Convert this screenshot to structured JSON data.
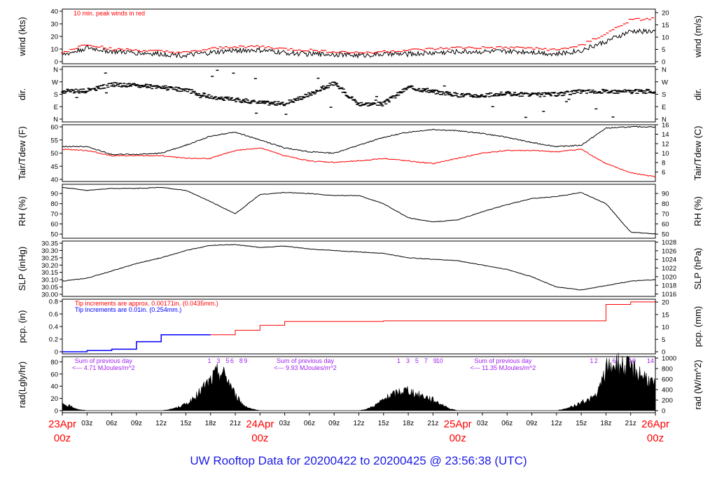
{
  "footer": {
    "title": "UW Rooftop Data for 20200422  to  20200425 @ 23:56:38  (UTC)"
  },
  "colors": {
    "black": "#000000",
    "red": "#ff0000",
    "blue": "#0000ff",
    "purple": "#a020f0",
    "footer_blue": "#1a1ae6"
  },
  "chart_data": [
    {
      "id": "wind",
      "type": "line",
      "ylabel": "wind (kts)",
      "ylabel_right": "wind (m/s)",
      "ylim": [
        0,
        40
      ],
      "yticks": [
        0,
        10,
        20,
        30,
        40
      ],
      "right_ticks": [
        0,
        5,
        10,
        15,
        20
      ],
      "right_factor": 0.5144,
      "annotation": "10 min. peak winds in red",
      "x": [
        0,
        3,
        6,
        9,
        12,
        15,
        18,
        21,
        24,
        27,
        30,
        33,
        36,
        39,
        42,
        45,
        48,
        51,
        54,
        57,
        60,
        63,
        66,
        69,
        72
      ],
      "series": [
        {
          "name": "wind",
          "color": "#000000",
          "values": [
            5,
            11,
            8,
            7,
            6,
            5,
            7,
            9,
            9,
            7,
            6,
            6,
            5,
            6,
            6,
            7,
            8,
            8,
            8,
            8,
            6,
            9,
            16,
            24,
            24
          ]
        },
        {
          "name": "10 min. peak winds",
          "color": "#ff0000",
          "values": [
            7,
            14,
            10,
            9,
            8,
            7,
            10,
            12,
            12,
            10,
            9,
            8,
            7,
            8,
            9,
            10,
            11,
            11,
            11,
            11,
            9,
            13,
            22,
            33,
            34
          ]
        }
      ]
    },
    {
      "id": "dir",
      "type": "scatter",
      "ylabel": "dir.",
      "ylabel_right": "dir.",
      "ytick_labels": [
        "N",
        "E",
        "S",
        "W",
        "N"
      ],
      "ytick_values": [
        0,
        90,
        180,
        270,
        360
      ],
      "x": [
        0,
        3,
        6,
        9,
        12,
        15,
        18,
        21,
        24,
        27,
        30,
        33,
        36,
        39,
        42,
        45,
        48,
        51,
        54,
        57,
        60,
        63,
        66,
        69,
        72
      ],
      "values": [
        200,
        205,
        250,
        245,
        230,
        210,
        160,
        140,
        120,
        110,
        180,
        260,
        110,
        110,
        230,
        200,
        175,
        170,
        185,
        175,
        180,
        200,
        200,
        200,
        200
      ]
    },
    {
      "id": "temp",
      "type": "line",
      "ylabel": "Tair/Tdew (F)",
      "ylabel_right": "Tair/Tdew (C)",
      "ylim": [
        40,
        60
      ],
      "yticks": [
        40,
        45,
        50,
        55,
        60
      ],
      "right_ticks": [
        6,
        8,
        10,
        12,
        14,
        16
      ],
      "x": [
        0,
        3,
        6,
        9,
        12,
        15,
        18,
        21,
        24,
        27,
        30,
        33,
        36,
        39,
        42,
        45,
        48,
        51,
        54,
        57,
        60,
        63,
        66,
        69,
        72
      ],
      "series": [
        {
          "name": "Tair",
          "color": "#000000",
          "values": [
            52.5,
            52.5,
            49.5,
            49.5,
            50.0,
            53.0,
            56.5,
            58.0,
            55.0,
            52.0,
            50.5,
            50.0,
            53.0,
            56.0,
            58.0,
            59.0,
            58.5,
            57.5,
            56.0,
            54.0,
            52.5,
            53.0,
            59.5,
            60.0,
            60.0
          ]
        },
        {
          "name": "Tdew",
          "color": "#ff0000",
          "values": [
            51.5,
            51.0,
            49.0,
            49.0,
            49.0,
            48.0,
            48.0,
            51.0,
            52.0,
            49.0,
            47.0,
            46.5,
            47.0,
            48.0,
            47.0,
            46.0,
            48.0,
            50.0,
            51.0,
            51.0,
            50.5,
            51.5,
            46.0,
            42.5,
            41.0
          ]
        }
      ]
    },
    {
      "id": "rh",
      "type": "line",
      "ylabel": "RH (%)",
      "ylabel_right": "RH (%)",
      "ylim": [
        48,
        97
      ],
      "yticks": [
        50,
        60,
        70,
        80,
        90
      ],
      "x": [
        0,
        3,
        6,
        9,
        12,
        15,
        18,
        21,
        24,
        27,
        30,
        33,
        36,
        39,
        42,
        45,
        48,
        51,
        54,
        57,
        60,
        63,
        66,
        69,
        72
      ],
      "series": [
        {
          "name": "RH",
          "color": "#000000",
          "values": [
            96,
            93,
            95,
            95,
            96,
            93,
            82,
            70,
            89,
            91,
            90,
            88,
            88,
            80,
            66,
            62,
            64,
            72,
            79,
            85,
            87,
            91,
            80,
            52,
            50
          ]
        }
      ]
    },
    {
      "id": "slp",
      "type": "line",
      "ylabel": "SLP (inHg)",
      "ylabel_right": "SLP (hPa)",
      "ylim": [
        30.0,
        30.35
      ],
      "yticks": [
        30.0,
        30.05,
        30.1,
        30.15,
        30.2,
        30.25,
        30.3,
        30.35
      ],
      "right_ticks": [
        1016,
        1018,
        1020,
        1022,
        1024,
        1026,
        1028
      ],
      "x": [
        0,
        3,
        6,
        9,
        12,
        15,
        18,
        21,
        24,
        27,
        30,
        33,
        36,
        39,
        42,
        45,
        48,
        51,
        54,
        57,
        60,
        63,
        66,
        69,
        72
      ],
      "series": [
        {
          "name": "SLP",
          "color": "#000000",
          "values": [
            30.09,
            30.11,
            30.16,
            30.21,
            30.25,
            30.3,
            30.335,
            30.34,
            30.32,
            30.33,
            30.31,
            30.3,
            30.29,
            30.28,
            30.25,
            30.24,
            30.23,
            30.2,
            30.17,
            30.12,
            30.05,
            30.03,
            30.06,
            30.09,
            30.1
          ]
        }
      ]
    },
    {
      "id": "pcp",
      "type": "line",
      "ylabel": "pcp. (in)",
      "ylabel_right": "pcp. (mm)",
      "ylim": [
        0,
        0.8
      ],
      "yticks": [
        0,
        0.2,
        0.4,
        0.6,
        0.8
      ],
      "right_ticks": [
        0,
        5,
        10,
        15,
        20
      ],
      "annotations": [
        "Tip increments are approx. 0.00171in. (0.0435mm.)",
        "Tip increments are 0.01in. (0.254mm.)"
      ],
      "x": [
        0,
        3,
        6,
        9,
        12,
        15,
        18,
        21,
        24,
        27,
        30,
        33,
        36,
        39,
        42,
        45,
        48,
        51,
        54,
        57,
        60,
        63,
        66,
        69,
        72
      ],
      "series": [
        {
          "name": "pcp",
          "color": "#ff0000",
          "values": [
            0,
            0.02,
            0.04,
            0.16,
            0.27,
            0.27,
            0.27,
            0.34,
            0.42,
            0.48,
            0.48,
            0.48,
            0.48,
            0.49,
            0.49,
            0.49,
            0.49,
            0.49,
            0.49,
            0.49,
            0.49,
            0.49,
            0.75,
            0.79,
            0.79
          ]
        }
      ]
    },
    {
      "id": "rad",
      "type": "area",
      "ylabel": "rad(Lgly/hr)",
      "ylabel_right": "rad (W/m^2)",
      "ylim": [
        0,
        85
      ],
      "yticks": [
        0,
        20,
        40,
        60,
        80
      ],
      "right_ticks": [
        0,
        200,
        400,
        600,
        800,
        1000
      ],
      "annotations": [
        {
          "line1": "Sum of previous day",
          "line2": "<--- 4.71 MJoules/m^2"
        },
        {
          "line1": "Sum of previous day",
          "line2": "<--- 9.93 MJoules/m^2"
        },
        {
          "line1": "Sum of previous day",
          "line2": "<--- 11.35 MJoules/m^2"
        }
      ],
      "hour_markers": [
        [
          "1",
          "3",
          "5",
          "6",
          "8",
          "9"
        ],
        [
          "1",
          "3",
          "5",
          "7",
          "9",
          "10"
        ],
        [
          "1",
          "2",
          "6",
          "10",
          "14"
        ]
      ],
      "x": [
        0,
        1,
        2,
        3,
        12,
        13,
        14,
        15,
        16,
        17,
        18,
        19,
        20,
        21,
        22,
        23,
        24,
        36,
        37,
        38,
        39,
        40,
        41,
        42,
        43,
        44,
        45,
        46,
        47,
        48,
        60,
        61,
        62,
        63,
        64,
        65,
        66,
        67,
        68,
        69,
        70,
        71,
        72
      ],
      "values": [
        12,
        8,
        2,
        0,
        0,
        2,
        6,
        12,
        22,
        40,
        55,
        72,
        60,
        28,
        10,
        3,
        0,
        0,
        3,
        10,
        20,
        28,
        35,
        38,
        30,
        26,
        20,
        12,
        4,
        0,
        0,
        3,
        8,
        15,
        20,
        30,
        75,
        85,
        82,
        78,
        70,
        60,
        45
      ]
    }
  ],
  "xaxis": {
    "hours": [
      "03z",
      "06z",
      "09z",
      "12z",
      "15z",
      "18z",
      "21z",
      "03z",
      "06z",
      "09z",
      "12z",
      "15z",
      "18z",
      "21z",
      "03z",
      "06z",
      "09z",
      "12z",
      "15z",
      "18z",
      "21z"
    ],
    "days": [
      {
        "date": "23Apr",
        "time": "00z"
      },
      {
        "date": "24Apr",
        "time": "00z"
      },
      {
        "date": "25Apr",
        "time": "00z"
      },
      {
        "date": "26Apr",
        "time": "00z"
      }
    ]
  }
}
